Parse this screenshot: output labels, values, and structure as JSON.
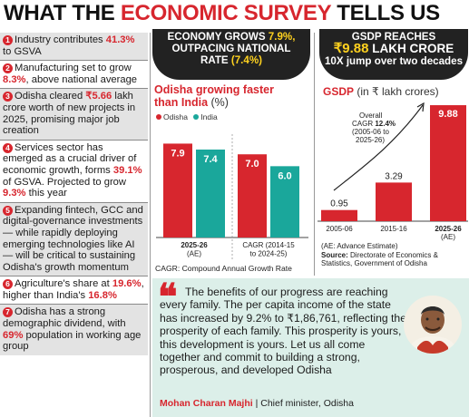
{
  "headline": {
    "part1": "WHAT THE ",
    "part2": "ECONOMIC SURVEY",
    "part3": " TELLS US"
  },
  "points": [
    {
      "num": "1",
      "pre": "Industry contributes ",
      "hl": "41.3%",
      "post": " to GSVA"
    },
    {
      "num": "2",
      "pre": "Manufacturing set to grow ",
      "hl": "8.3%",
      "post": ", above national average"
    },
    {
      "num": "3",
      "pre": "Odisha cleared ",
      "hl": "₹5.66",
      "post": " lakh crore worth of new projects in 2025, promising major job creation"
    },
    {
      "num": "4",
      "pre": "Services sector has emerged as a crucial driver of economic growth, forms ",
      "hl": "39.1%",
      "post": " of GSVA. Projected to grow ",
      "hl2": "9.3%",
      "post2": " this year"
    },
    {
      "num": "5",
      "pre": "Expanding fintech, GCC and digital-governance investments — while rapidly deploying emerging technologies like AI — will be critical to sustaining Odisha's growth momentum",
      "hl": "",
      "post": ""
    },
    {
      "num": "6",
      "pre": "Agriculture's share at ",
      "hl": "19.6%",
      "post": ", higher than India's ",
      "hl2": "16.8%",
      "post2": ""
    },
    {
      "num": "7",
      "pre": "Odisha has a strong demographic dividend, with ",
      "hl": "69%",
      "post": " population in working age group"
    }
  ],
  "middle": {
    "banner_l1a": "ECONOMY GROWS ",
    "banner_l1b": "7.9%,",
    "banner_l2": "OUTPACING NATIONAL",
    "banner_l3a": "RATE ",
    "banner_l3b": "(7.4%)",
    "title_l1": "Odisha growing faster",
    "title_l2": "than India",
    "title_unit": " (%)",
    "legend_odisha": "Odisha",
    "legend_india": "India",
    "footnote": "CAGR: Compound Annual Growth Rate"
  },
  "right": {
    "banner_l1": "GSDP REACHES",
    "banner_l2a": "₹9.88",
    "banner_l2b": " LAKH CRORE",
    "banner_l3": "10X jump over two decades",
    "title": "GSDP",
    "title_unit": " (in ₹ lakh crores)",
    "annotation_l1": "Overall",
    "annotation_l2a": "CAGR ",
    "annotation_l2b": "12.4%",
    "annotation_l3": "(2005-06 to",
    "annotation_l4": "2025-26)",
    "foot_l1": "(AE: Advance Estimate)",
    "foot_source_label": "Source:",
    "foot_source": " Directorate of Economics & Statistics, Government of Odisha"
  },
  "quote": {
    "text": "The benefits of our progress are reaching every family. The per capita income of the state has increased by 9.2% to ₹1,86,761, reflecting the prosperity of each family. This prosperity is yours, this development is yours. Let us all come together and commit to building a strong, prosperous, and developed Odisha",
    "name": "Mohan Charan Majhi",
    "role": " | Chief minister, Odisha"
  },
  "chart_data": [
    {
      "type": "bar",
      "title": "Odisha growing faster than India (%)",
      "categories": [
        "2025-26 (AE)",
        "CAGR (2014-15 to 2024-25)"
      ],
      "series": [
        {
          "name": "Odisha",
          "values": [
            7.9,
            7.0
          ],
          "color": "#d7262e"
        },
        {
          "name": "India",
          "values": [
            7.4,
            6.0
          ],
          "color": "#1aa79b"
        }
      ],
      "ylim": [
        0,
        9
      ]
    },
    {
      "type": "bar",
      "title": "GSDP (in ₹ lakh crores)",
      "categories": [
        "2005-06",
        "2015-16",
        "2025-26 (AE)"
      ],
      "values": [
        0.95,
        3.29,
        9.88
      ],
      "color": "#d7262e",
      "ylim": [
        0,
        10.5
      ]
    }
  ]
}
